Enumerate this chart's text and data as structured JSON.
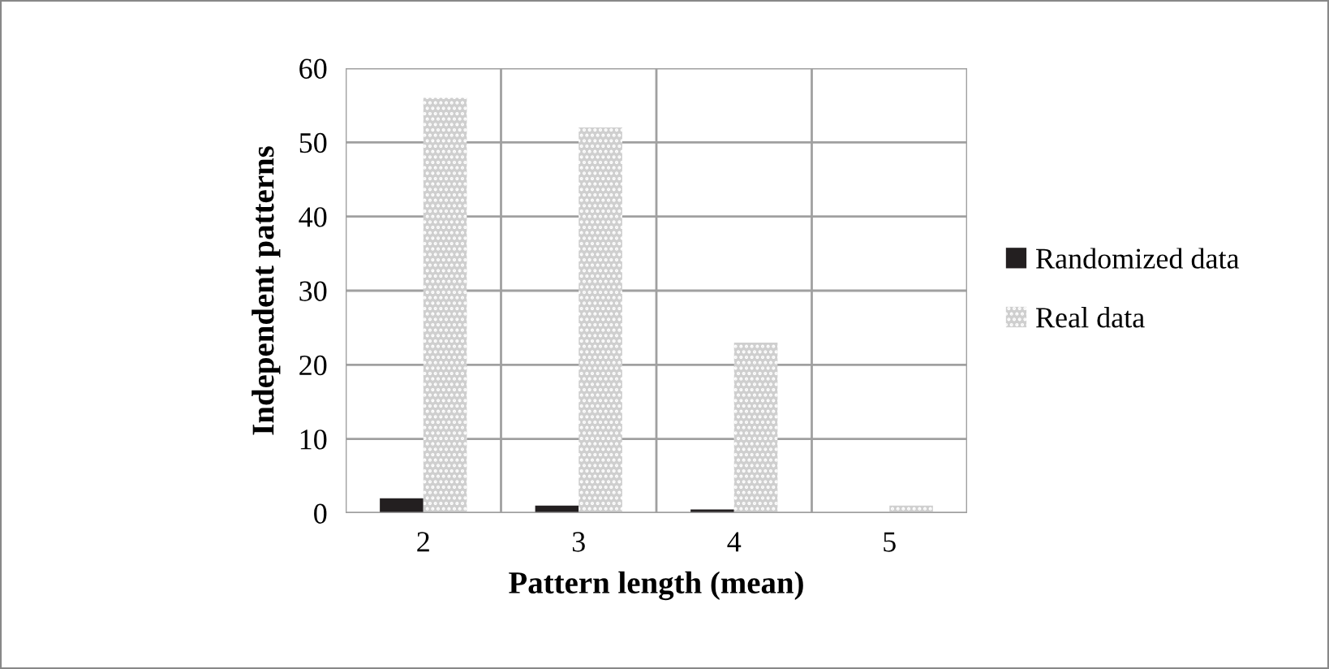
{
  "chart_data": {
    "type": "bar",
    "xlabel": "Pattern length (mean)",
    "ylabel": "Independent patterns",
    "categories": [
      "2",
      "3",
      "4",
      "5"
    ],
    "series": [
      {
        "name": "Randomized data",
        "color": "#231f20",
        "values": [
          2,
          1,
          0.5,
          0
        ]
      },
      {
        "name": "Real data",
        "color": "#cfcfcf",
        "values": [
          56,
          52,
          23,
          1
        ]
      }
    ],
    "ylim": [
      0,
      60
    ],
    "yticks": [
      0,
      10,
      20,
      30,
      40,
      50,
      60
    ],
    "grid": true,
    "legend": "right"
  }
}
